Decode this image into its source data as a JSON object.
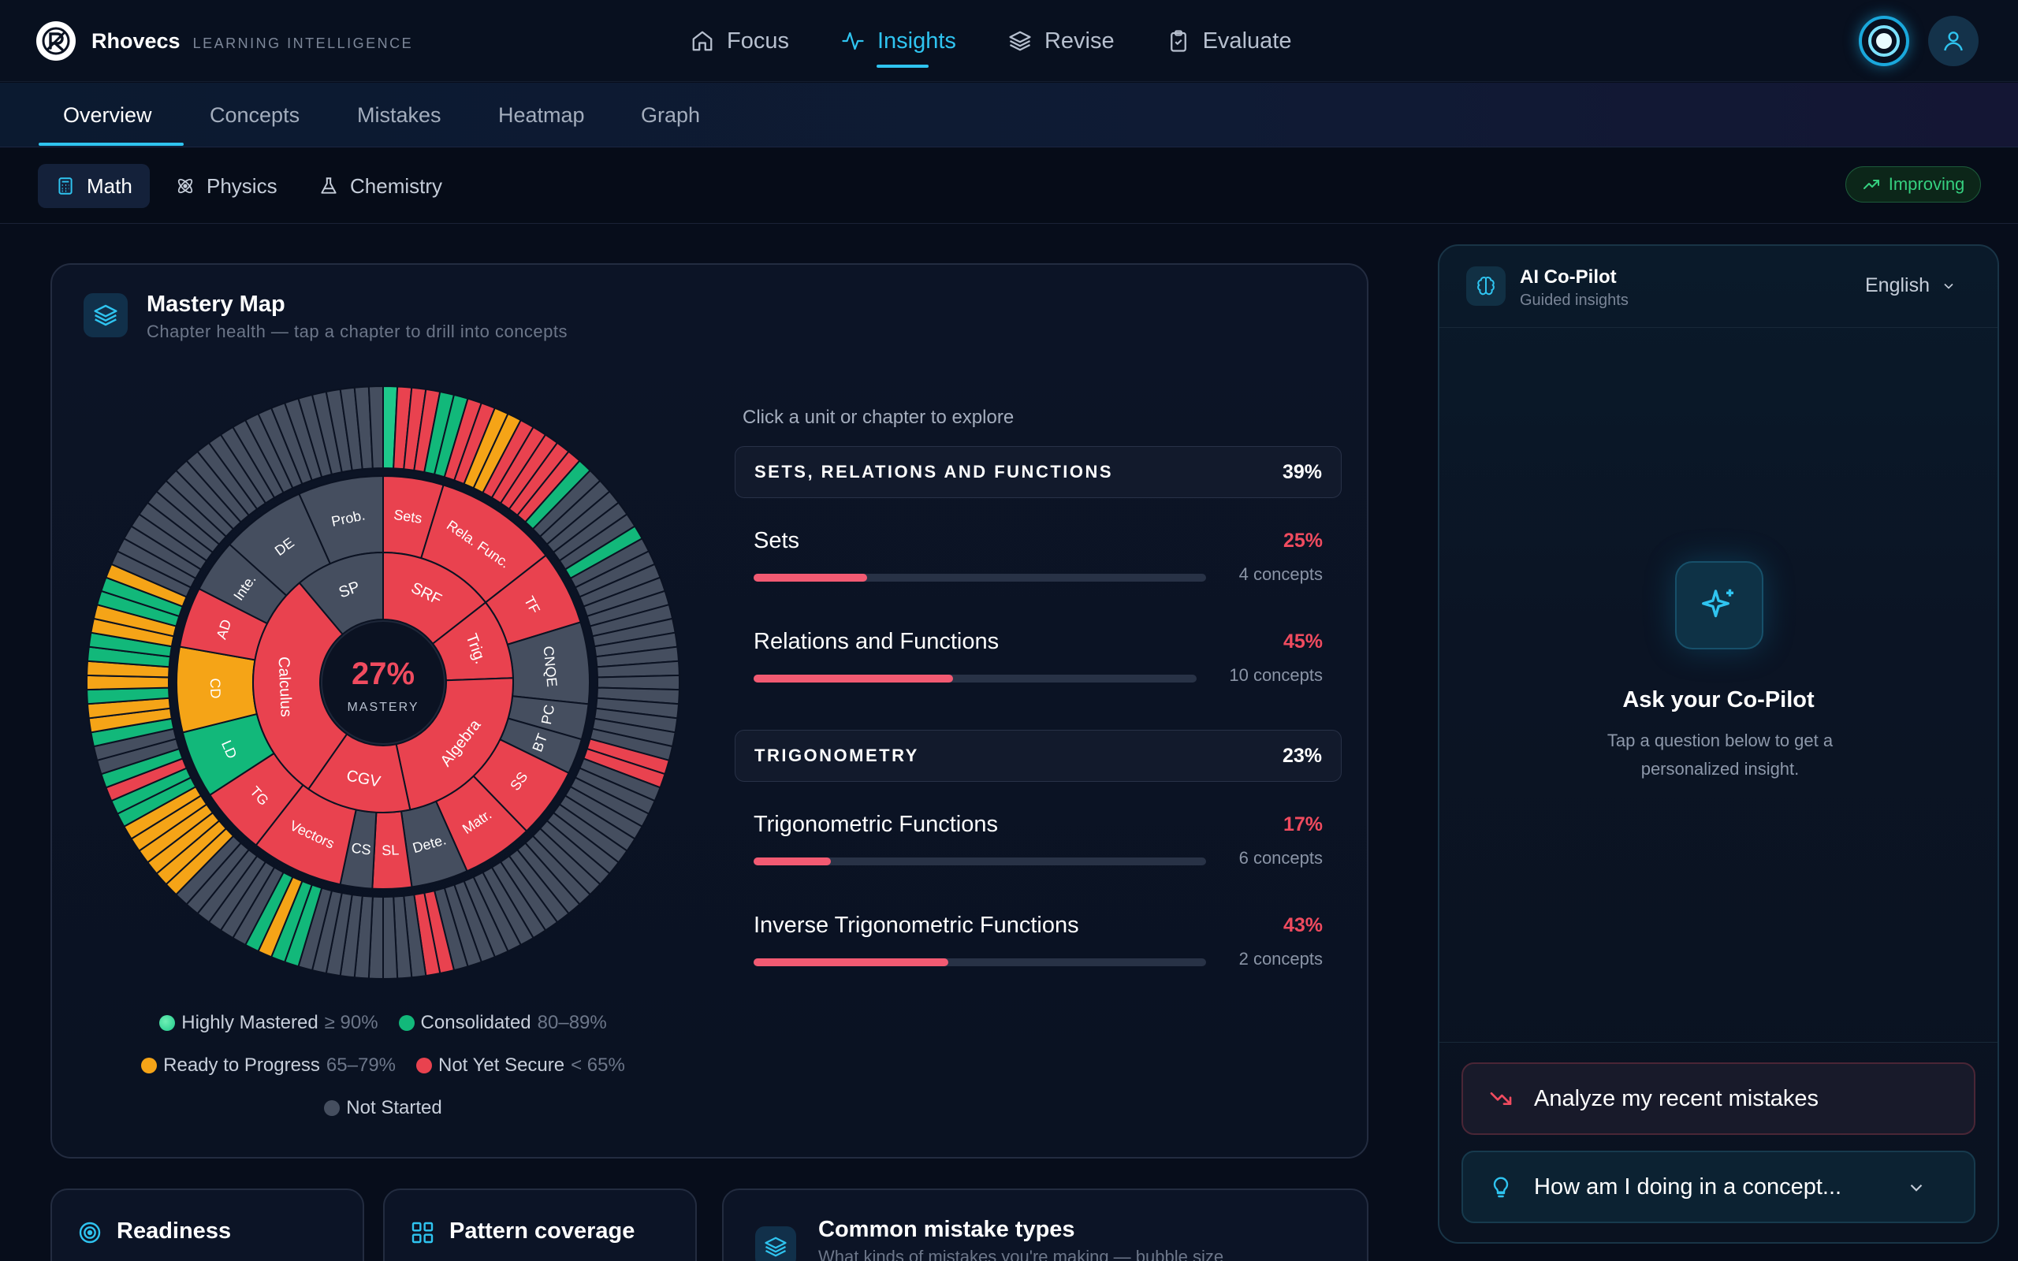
{
  "app": {
    "name": "Rhovecs",
    "tagline": "LEARNING INTELLIGENCE"
  },
  "topnav": [
    {
      "label": "Focus",
      "icon": "home-icon",
      "active": false
    },
    {
      "label": "Insights",
      "icon": "activity-icon",
      "active": true
    },
    {
      "label": "Revise",
      "icon": "layers-icon",
      "active": false
    },
    {
      "label": "Evaluate",
      "icon": "clipboard-check-icon",
      "active": false
    }
  ],
  "subtabs": [
    "Overview",
    "Concepts",
    "Mistakes",
    "Heatmap",
    "Graph"
  ],
  "subjects": [
    {
      "label": "Math",
      "icon": "calculator-icon",
      "active": true
    },
    {
      "label": "Physics",
      "icon": "atom-icon",
      "active": false
    },
    {
      "label": "Chemistry",
      "icon": "flask-icon",
      "active": false
    }
  ],
  "trend_badge": "Improving",
  "mastery": {
    "title": "Mastery Map",
    "subtitle": "Chapter health — tap a chapter to drill into concepts",
    "center_value": "27%",
    "center_label": "MASTERY",
    "colors": {
      "highly": "#1ec98b",
      "consolidated": "#12b87a",
      "ready": "#f5a417",
      "not_secure": "#e9424f",
      "not_started": "#454e5f"
    },
    "units": [
      "Calculus",
      "SP",
      "SRF",
      "Trig.",
      "Algebra",
      "CGV"
    ],
    "chapters": [
      "Sets",
      "Rela. Func.",
      "TF",
      "CNQE",
      "PC",
      "BT",
      "SS",
      "Matr.",
      "Dete.",
      "SL",
      "CS",
      "Vectors",
      "TG",
      "LD",
      "CD",
      "AD",
      "Inte.",
      "DE",
      "Prob."
    ],
    "legend": [
      {
        "label": "Highly Mastered",
        "range": "≥ 90%",
        "color": "highly"
      },
      {
        "label": "Consolidated",
        "range": "80–89%",
        "color": "consolidated"
      },
      {
        "label": "Ready to Progress",
        "range": "65–79%",
        "color": "ready"
      },
      {
        "label": "Not Yet Secure",
        "range": "< 65%",
        "color": "not_secure"
      },
      {
        "label": "Not Started",
        "range": "",
        "color": "not_started"
      }
    ]
  },
  "explore_hint": "Click a unit or chapter to explore",
  "detail_units": [
    {
      "name": "SETS, RELATIONS AND FUNCTIONS",
      "pct": "39%",
      "chapters": [
        {
          "name": "Sets",
          "pct": "25%",
          "value": 0.25,
          "count": "4 concepts"
        },
        {
          "name": "Relations and Functions",
          "pct": "45%",
          "value": 0.45,
          "count": "10 concepts"
        }
      ]
    },
    {
      "name": "TRIGONOMETRY",
      "pct": "23%",
      "chapters": [
        {
          "name": "Trigonometric Functions",
          "pct": "17%",
          "value": 0.17,
          "count": "6 concepts"
        },
        {
          "name": "Inverse Trigonometric Functions",
          "pct": "43%",
          "value": 0.43,
          "count": "2 concepts"
        }
      ]
    }
  ],
  "copilot": {
    "title": "AI Co-Pilot",
    "subtitle": "Guided insights",
    "language": "English",
    "prompt_title": "Ask your Co-Pilot",
    "prompt_desc": "Tap a question below to get a personalized insight.",
    "actions": [
      {
        "label": "Analyze my recent mistakes",
        "icon": "trending-down-icon"
      },
      {
        "label": "How am I doing in a concept...",
        "icon": "lightbulb-icon"
      }
    ]
  },
  "bottom_cards": [
    {
      "title": "Readiness",
      "icon": "target-icon"
    },
    {
      "title": "Pattern coverage",
      "icon": "grid-icon"
    },
    {
      "title": "Common mistake types",
      "subtitle": "What kinds of mistakes you're making — bubble size",
      "icon": "layers-icon"
    }
  ]
}
